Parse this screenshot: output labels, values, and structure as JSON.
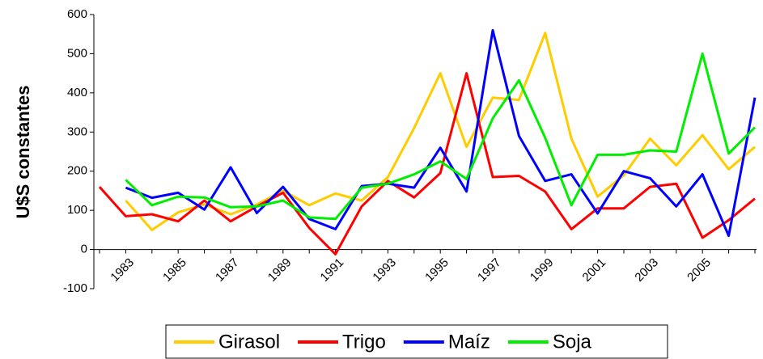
{
  "chart_data": {
    "type": "line",
    "y_label": "U$S constantes",
    "categories": [
      null,
      "1983",
      null,
      "1985",
      null,
      "1987",
      null,
      "1989",
      null,
      "1991",
      null,
      "1993",
      null,
      "1995",
      null,
      "1997",
      null,
      "1999",
      null,
      "2001",
      null,
      "2003",
      null,
      "2005",
      null,
      null
    ],
    "series": [
      {
        "name": "Girasol",
        "color": "#ffcc00",
        "values": [
          null,
          125,
          50,
          95,
          115,
          90,
          115,
          150,
          113,
          143,
          125,
          185,
          310,
          450,
          262,
          388,
          382,
          553,
          283,
          135,
          190,
          283,
          215,
          292,
          205,
          262
        ]
      },
      {
        "name": "Trigo",
        "color": "#ff0000",
        "values": [
          160,
          85,
          90,
          72,
          125,
          72,
          110,
          145,
          55,
          -12,
          110,
          175,
          133,
          195,
          450,
          185,
          188,
          148,
          52,
          105,
          105,
          160,
          168,
          30,
          75,
          130
        ]
      },
      {
        "name": "Maíz",
        "color": "#0000ff",
        "values": [
          null,
          158,
          132,
          145,
          102,
          210,
          93,
          160,
          78,
          52,
          162,
          168,
          158,
          260,
          148,
          560,
          290,
          175,
          192,
          92,
          200,
          182,
          110,
          192,
          35,
          388
        ]
      },
      {
        "name": "Soja",
        "color": "#00ee00",
        "values": [
          null,
          178,
          113,
          135,
          133,
          108,
          110,
          125,
          82,
          78,
          158,
          168,
          192,
          225,
          180,
          335,
          432,
          285,
          113,
          242,
          242,
          253,
          250,
          500,
          245,
          312
        ]
      }
    ],
    "ylim": [
      -100,
      600
    ],
    "yticks": [
      -100,
      0,
      100,
      200,
      300,
      400,
      500,
      600
    ],
    "grid": false,
    "legend": "bottom"
  }
}
